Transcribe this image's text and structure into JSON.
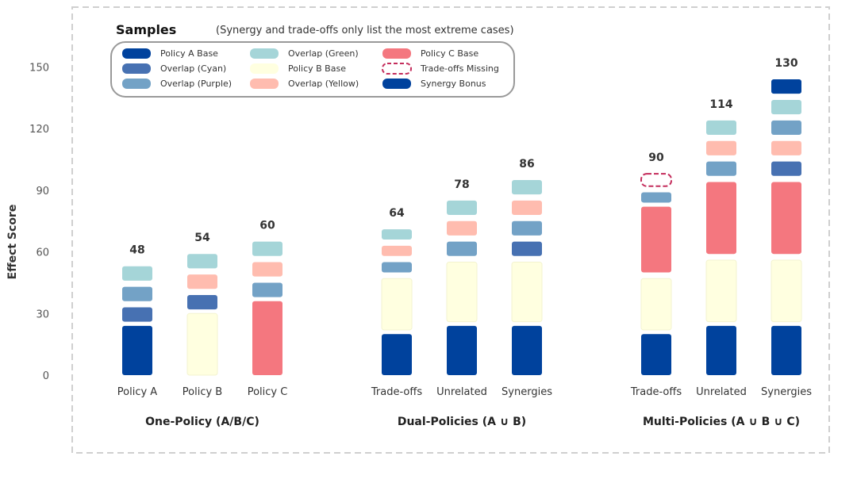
{
  "chart_data": {
    "type": "bar",
    "stacked": true,
    "ylabel": "Effect Score",
    "ylim": [
      0,
      160
    ],
    "yticks": [
      "0",
      "30",
      "60",
      "90",
      "120",
      "150"
    ],
    "legend": {
      "title": "Samples",
      "note": "(Synergy and trade-offs only list the most extreme cases)",
      "placement": "top-left"
    },
    "components": [
      {
        "key": "a_base",
        "label": "Policy A Base",
        "color": "#00429d"
      },
      {
        "key": "ov_cyan",
        "label": "Overlap (Cyan)",
        "color": "#4771b2"
      },
      {
        "key": "ov_purple",
        "label": "Overlap (Purple)",
        "color": "#73a2c6"
      },
      {
        "key": "ov_green",
        "label": "Overlap (Green)",
        "color": "#a5d5d8"
      },
      {
        "key": "b_base",
        "label": "Policy B Base",
        "color": "#ffffe0"
      },
      {
        "key": "ov_yellow",
        "label": "Overlap (Yellow)",
        "color": "#ffbcaf"
      },
      {
        "key": "c_base",
        "label": "Policy C Base",
        "color": "#f4777f"
      },
      {
        "key": "missing",
        "label": "Trade-offs Missing",
        "color": "#c42d5c",
        "dashed": true
      },
      {
        "key": "bonus",
        "label": "Synergy Bonus",
        "color": "#00429d"
      }
    ],
    "groups": [
      {
        "name": "One-Policy (A/B/C)",
        "bars": [
          {
            "label": "Policy A",
            "total": "48",
            "segments": [
              {
                "key": "a_base",
                "from": 0,
                "to": 24
              },
              {
                "key": "ov_cyan",
                "from": 26,
                "to": 33
              },
              {
                "key": "ov_purple",
                "from": 36,
                "to": 43
              },
              {
                "key": "ov_green",
                "from": 46,
                "to": 53
              }
            ]
          },
          {
            "label": "Policy B",
            "total": "54",
            "segments": [
              {
                "key": "b_base",
                "from": 0,
                "to": 30
              },
              {
                "key": "ov_cyan",
                "from": 32,
                "to": 39
              },
              {
                "key": "ov_yellow",
                "from": 42,
                "to": 49
              },
              {
                "key": "ov_green",
                "from": 52,
                "to": 59
              }
            ]
          },
          {
            "label": "Policy C",
            "total": "60",
            "segments": [
              {
                "key": "c_base",
                "from": 0,
                "to": 36
              },
              {
                "key": "ov_purple",
                "from": 38,
                "to": 45
              },
              {
                "key": "ov_yellow",
                "from": 48,
                "to": 55
              },
              {
                "key": "ov_green",
                "from": 58,
                "to": 65
              }
            ]
          }
        ]
      },
      {
        "name": "Dual-Policies (A ∪ B)",
        "bars": [
          {
            "label": "Trade-offs",
            "total": "64",
            "segments": [
              {
                "key": "a_base",
                "from": 0,
                "to": 20
              },
              {
                "key": "b_base",
                "from": 22,
                "to": 47
              },
              {
                "key": "ov_purple",
                "from": 50,
                "to": 55
              },
              {
                "key": "ov_yellow",
                "from": 58,
                "to": 63
              },
              {
                "key": "ov_green",
                "from": 66,
                "to": 71
              }
            ]
          },
          {
            "label": "Unrelated",
            "total": "78",
            "segments": [
              {
                "key": "a_base",
                "from": 0,
                "to": 24
              },
              {
                "key": "b_base",
                "from": 26,
                "to": 55
              },
              {
                "key": "ov_purple",
                "from": 58,
                "to": 65
              },
              {
                "key": "ov_yellow",
                "from": 68,
                "to": 75
              },
              {
                "key": "ov_green",
                "from": 78,
                "to": 85
              }
            ]
          },
          {
            "label": "Synergies",
            "total": "86",
            "segments": [
              {
                "key": "a_base",
                "from": 0,
                "to": 24
              },
              {
                "key": "b_base",
                "from": 26,
                "to": 55
              },
              {
                "key": "ov_cyan",
                "from": 58,
                "to": 65
              },
              {
                "key": "ov_purple",
                "from": 68,
                "to": 75
              },
              {
                "key": "ov_yellow",
                "from": 78,
                "to": 85
              },
              {
                "key": "ov_green",
                "from": 88,
                "to": 95
              }
            ]
          }
        ]
      },
      {
        "name": "Multi-Policies (A ∪ B ∪ C)",
        "bars": [
          {
            "label": "Trade-offs",
            "total": "90",
            "segments": [
              {
                "key": "a_base",
                "from": 0,
                "to": 20
              },
              {
                "key": "b_base",
                "from": 22,
                "to": 47
              },
              {
                "key": "c_base",
                "from": 50,
                "to": 82
              },
              {
                "key": "ov_purple",
                "from": 84,
                "to": 89
              },
              {
                "key": "missing",
                "from": 92,
                "to": 98
              }
            ]
          },
          {
            "label": "Unrelated",
            "total": "114",
            "segments": [
              {
                "key": "a_base",
                "from": 0,
                "to": 24
              },
              {
                "key": "b_base",
                "from": 26,
                "to": 56
              },
              {
                "key": "c_base",
                "from": 59,
                "to": 94
              },
              {
                "key": "ov_purple",
                "from": 97,
                "to": 104
              },
              {
                "key": "ov_yellow",
                "from": 107,
                "to": 114
              },
              {
                "key": "ov_green",
                "from": 117,
                "to": 124
              }
            ]
          },
          {
            "label": "Synergies",
            "total": "130",
            "segments": [
              {
                "key": "a_base",
                "from": 0,
                "to": 24
              },
              {
                "key": "b_base",
                "from": 26,
                "to": 56
              },
              {
                "key": "c_base",
                "from": 59,
                "to": 94
              },
              {
                "key": "ov_cyan",
                "from": 97,
                "to": 104
              },
              {
                "key": "ov_yellow",
                "from": 107,
                "to": 114
              },
              {
                "key": "ov_purple",
                "from": 117,
                "to": 124
              },
              {
                "key": "ov_green",
                "from": 127,
                "to": 134
              },
              {
                "key": "bonus",
                "from": 137,
                "to": 144
              }
            ]
          }
        ]
      }
    ]
  }
}
